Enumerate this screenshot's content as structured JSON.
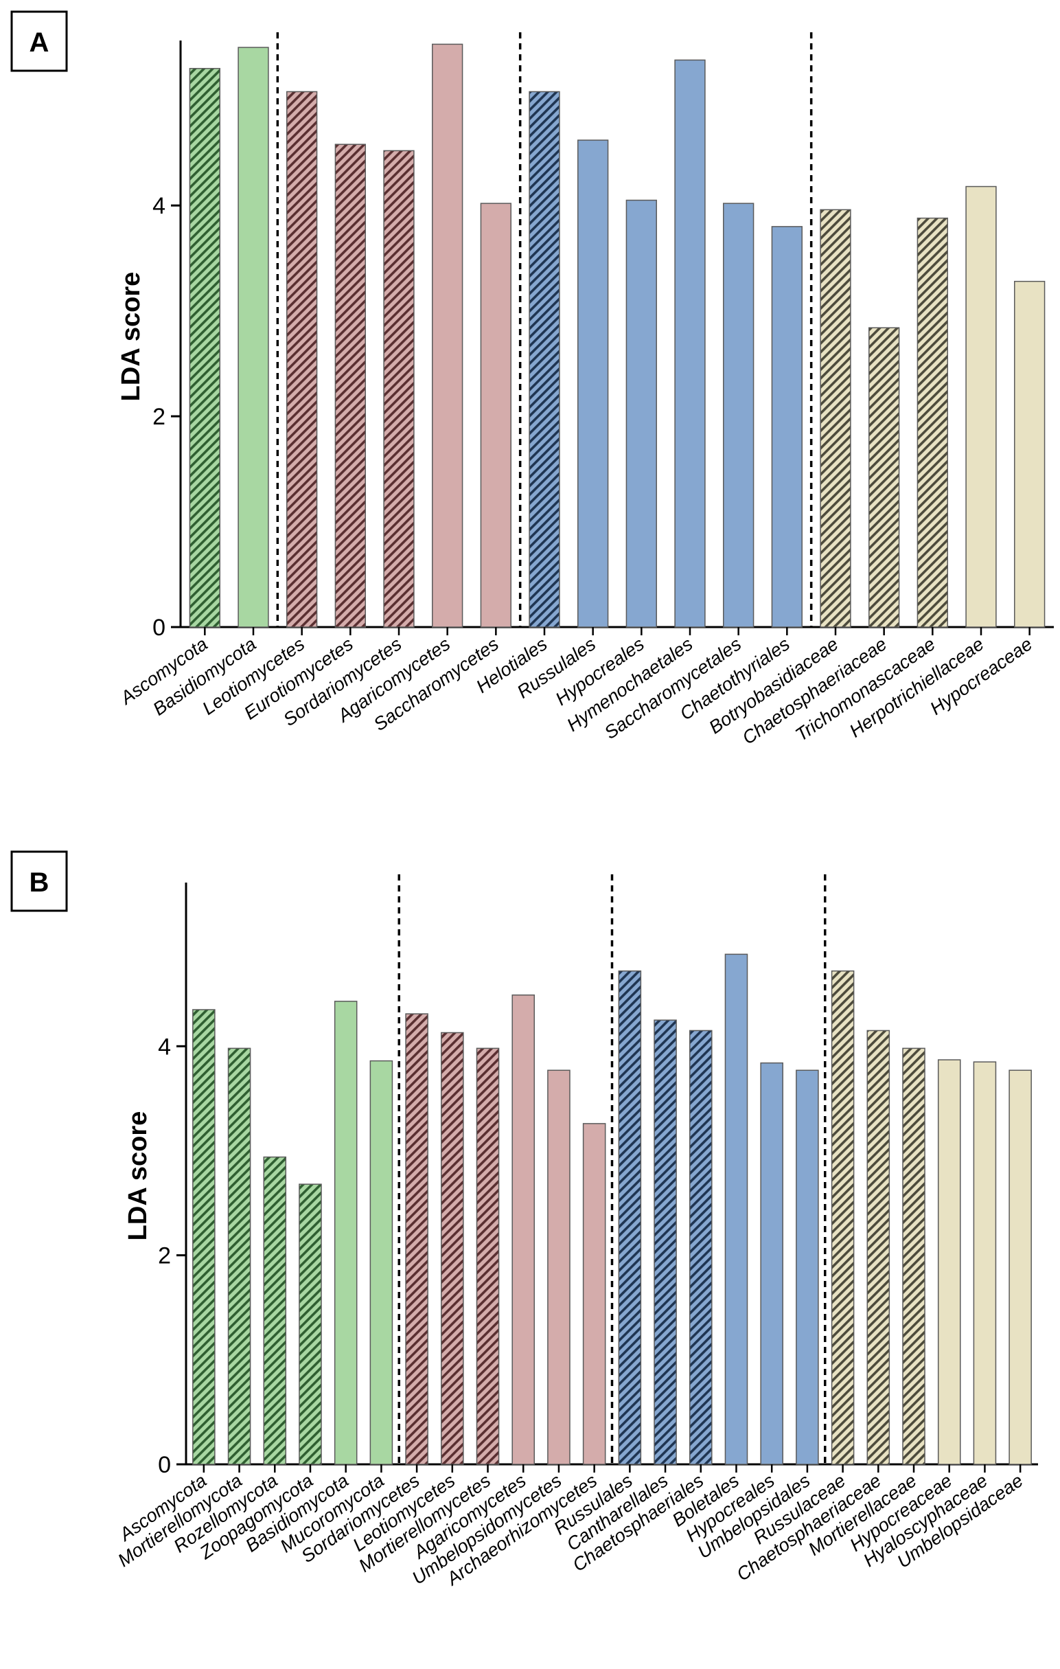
{
  "colors": {
    "green": "#a8d7a2",
    "rose": "#d4acab",
    "blue": "#86a7d0",
    "beige": "#e8e2c3"
  },
  "chart_data": [
    {
      "type": "bar",
      "panel": "A",
      "ylabel": "LDA score",
      "ylim": [
        0,
        5.5
      ],
      "yticks": [
        0,
        2,
        4
      ],
      "grid": false,
      "categories": [
        "Ascomycota",
        "Basidiomycota",
        "Leotiomycetes",
        "Eurotiomycetes",
        "Sordariomycetes",
        "Agaricomycetes",
        "Saccharomycetes",
        "Helotiales",
        "Russulales",
        "Hypocreales",
        "Hymenochaetales",
        "Saccharomycetales",
        "Chaetothyriales",
        "Botryobasidiaceae",
        "Chaetosphaeriaceae",
        "Trichomonascaceae",
        "Herpotrichiellaceae",
        "Hypocreaceae"
      ],
      "values": [
        5.3,
        5.5,
        5.08,
        4.58,
        4.52,
        5.53,
        4.02,
        5.08,
        4.62,
        4.05,
        5.38,
        4.02,
        3.8,
        3.96,
        2.84,
        3.88,
        4.18,
        3.28
      ],
      "colors": [
        "green",
        "green",
        "rose",
        "rose",
        "rose",
        "rose",
        "rose",
        "blue",
        "blue",
        "blue",
        "blue",
        "blue",
        "blue",
        "beige",
        "beige",
        "beige",
        "beige",
        "beige"
      ],
      "hatched": [
        true,
        false,
        true,
        true,
        true,
        false,
        false,
        true,
        false,
        false,
        false,
        false,
        false,
        true,
        true,
        true,
        false,
        false
      ],
      "dividers_after": [
        1,
        6,
        12
      ]
    },
    {
      "type": "bar",
      "panel": "B",
      "ylabel": "LDA score",
      "ylim": [
        0,
        5.5
      ],
      "yticks": [
        0,
        2,
        4
      ],
      "grid": false,
      "categories": [
        "Ascomycota",
        "Mortierellomycota",
        "Rozellomycota",
        "Zoopagomycota",
        "Basidiomycota",
        "Mucoromycota",
        "Sordariomycetes",
        "Leotiomycetes",
        "Mortierellomycetes",
        "Agaricomycetes",
        "Umbelopsidomycetes",
        "Archaeorhizomycetes",
        "Russulales",
        "Cantharellales",
        "Chaetosphaeriales",
        "Boletales",
        "Hypocreales",
        "Umbelopsidales",
        "Russulaceae",
        "Chaetosphaeriaceae",
        "Mortierellaceae",
        "Hypocreaceae",
        "Hyaloscyphaceae",
        "Umbelopsidaceae"
      ],
      "values": [
        4.35,
        3.98,
        2.94,
        2.68,
        4.43,
        3.86,
        4.31,
        4.13,
        3.98,
        4.49,
        3.77,
        3.26,
        4.72,
        4.25,
        4.15,
        4.88,
        3.84,
        3.77,
        4.72,
        4.15,
        3.98,
        3.87,
        3.85,
        3.77
      ],
      "colors": [
        "green",
        "green",
        "green",
        "green",
        "green",
        "green",
        "rose",
        "rose",
        "rose",
        "rose",
        "rose",
        "rose",
        "blue",
        "blue",
        "blue",
        "blue",
        "blue",
        "blue",
        "beige",
        "beige",
        "beige",
        "beige",
        "beige",
        "beige"
      ],
      "hatched": [
        true,
        true,
        true,
        true,
        false,
        false,
        true,
        true,
        true,
        false,
        false,
        false,
        true,
        true,
        true,
        false,
        false,
        false,
        true,
        true,
        true,
        false,
        false,
        false
      ],
      "dividers_after": [
        5,
        11,
        17
      ]
    }
  ]
}
